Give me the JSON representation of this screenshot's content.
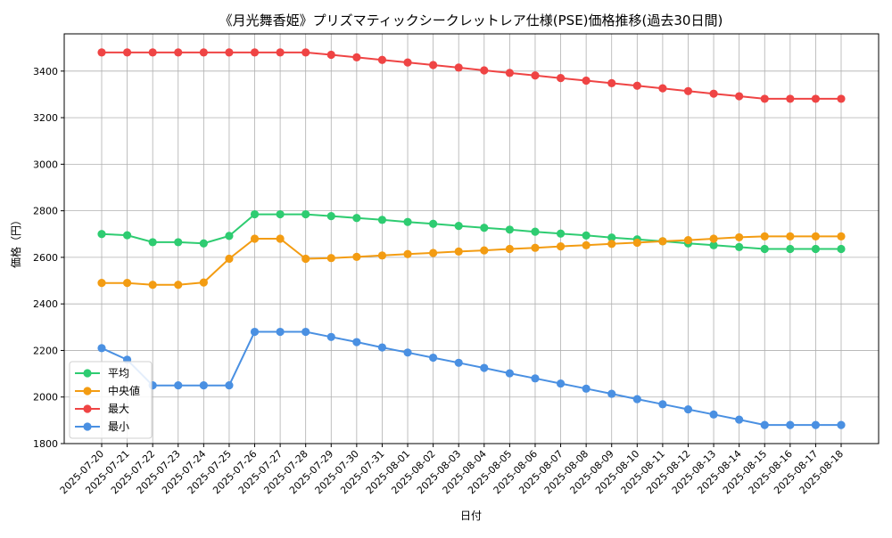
{
  "chart_data": {
    "type": "line",
    "title": "《月光舞香姫》プリズマティックシークレットレア仕様(PSE)価格推移(過去30日間)",
    "xlabel": "日付",
    "ylabel": "価格（円）",
    "ylim": [
      1800,
      3560
    ],
    "yticks": [
      1800,
      2000,
      2200,
      2400,
      2600,
      2800,
      3000,
      3200,
      3400
    ],
    "grid": true,
    "legend_position": "lower-left",
    "categories": [
      "2025-07-20",
      "2025-07-21",
      "2025-07-22",
      "2025-07-23",
      "2025-07-24",
      "2025-07-25",
      "2025-07-26",
      "2025-07-27",
      "2025-07-28",
      "2025-07-29",
      "2025-07-30",
      "2025-07-31",
      "2025-08-01",
      "2025-08-02",
      "2025-08-03",
      "2025-08-04",
      "2025-08-05",
      "2025-08-06",
      "2025-08-07",
      "2025-08-08",
      "2025-08-09",
      "2025-08-10",
      "2025-08-11",
      "2025-08-12",
      "2025-08-13",
      "2025-08-14",
      "2025-08-15",
      "2025-08-16",
      "2025-08-17",
      "2025-08-18"
    ],
    "series": [
      {
        "name": "平均",
        "color": "#2ecc71",
        "values": [
          2700,
          2695,
          2665,
          2665,
          2660,
          2692,
          2785,
          2785,
          2785,
          2777,
          2769,
          2761,
          2752,
          2744,
          2735,
          2727,
          2719,
          2710,
          2702,
          2694,
          2685,
          2677,
          2669,
          2660,
          2652,
          2644,
          2636,
          2636,
          2636,
          2636
        ]
      },
      {
        "name": "中央値",
        "color": "#f39c12",
        "values": [
          2490,
          2490,
          2482,
          2482,
          2492,
          2594,
          2680,
          2680,
          2594,
          2597,
          2602,
          2608,
          2614,
          2619,
          2625,
          2630,
          2636,
          2641,
          2647,
          2652,
          2658,
          2663,
          2669,
          2674,
          2680,
          2686,
          2690,
          2690,
          2690,
          2690
        ]
      },
      {
        "name": "最大",
        "color": "#ef4444",
        "values": [
          3480,
          3480,
          3480,
          3480,
          3480,
          3480,
          3480,
          3480,
          3480,
          3470,
          3459,
          3448,
          3437,
          3426,
          3415,
          3403,
          3392,
          3381,
          3370,
          3359,
          3348,
          3337,
          3326,
          3314,
          3303,
          3292,
          3281,
          3281,
          3281,
          3281
        ]
      },
      {
        "name": "最小",
        "color": "#4a90e2",
        "values": [
          2210,
          2160,
          2050,
          2050,
          2050,
          2050,
          2280,
          2280,
          2280,
          2258,
          2236,
          2213,
          2191,
          2169,
          2147,
          2125,
          2102,
          2080,
          2058,
          2036,
          2014,
          1991,
          1969,
          1947,
          1925,
          1903,
          1880,
          1880,
          1880,
          1880
        ]
      }
    ]
  }
}
